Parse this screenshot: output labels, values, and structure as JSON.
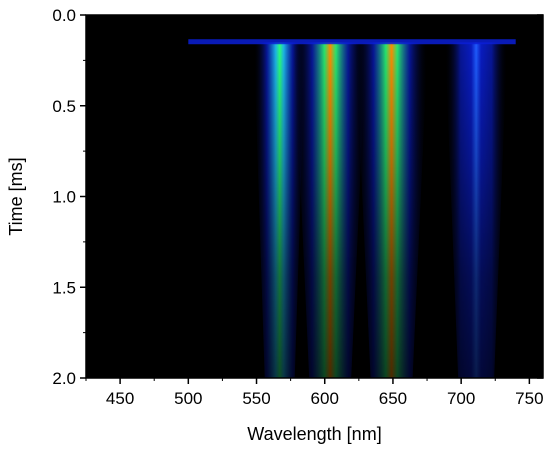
{
  "chart_data": {
    "type": "heatmap",
    "title": "",
    "xlabel": "Wavelength [nm]",
    "ylabel": "Time [ms]",
    "xlim": [
      425,
      760
    ],
    "ylim": [
      0.0,
      2.0
    ],
    "y_inverted": true,
    "x_ticks": [
      450,
      500,
      550,
      600,
      650,
      700,
      750
    ],
    "y_ticks": [
      0.0,
      0.5,
      1.0,
      1.5,
      2.0
    ],
    "x_tick_labels": [
      "450",
      "500",
      "550",
      "600",
      "650",
      "700",
      "750"
    ],
    "y_tick_labels": [
      "0.0",
      "0.5",
      "1.0",
      "1.5",
      "2.0"
    ],
    "background": "#000000",
    "colormap": [
      "#000000",
      "#0a1fd6",
      "#1f5cff",
      "#1fc8ff",
      "#2cff7a",
      "#c8ff1e",
      "#ff8c00",
      "#ff2000"
    ],
    "onset_time_ms": 0.15,
    "bands": [
      {
        "center_nm": 567,
        "width_nm": 10,
        "peak_intensity": 0.55,
        "decay_ms": 0.9
      },
      {
        "center_nm": 604,
        "width_nm": 14,
        "peak_intensity": 1.0,
        "decay_ms": 1.1
      },
      {
        "center_nm": 649,
        "width_nm": 14,
        "peak_intensity": 0.95,
        "decay_ms": 1.1
      },
      {
        "center_nm": 711,
        "width_nm": 12,
        "peak_intensity": 0.3,
        "decay_ms": 0.9
      }
    ]
  }
}
